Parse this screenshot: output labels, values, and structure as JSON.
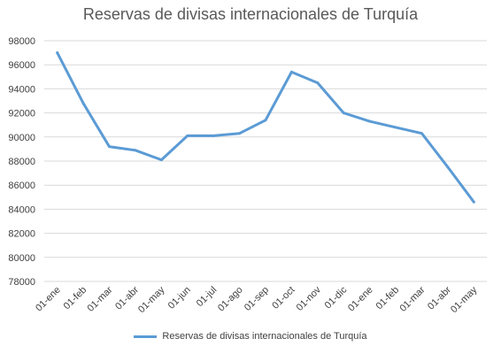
{
  "chart_data": {
    "type": "line",
    "title": "Reservas de divisas  internacionales de Turquía",
    "xlabel": "",
    "ylabel": "",
    "categories": [
      "01-ene",
      "01-feb",
      "01-mar",
      "01-abr",
      "01-may",
      "01-jun",
      "01-jul",
      "01-ago",
      "01-sep",
      "01-oct",
      "01-nov",
      "01-dic",
      "01-ene",
      "01-feb",
      "01-mar",
      "01-abr",
      "01-may"
    ],
    "series": [
      {
        "name": "Reservas de divisas  internacionales de Turquía",
        "values": [
          97000,
          92800,
          89200,
          88900,
          88100,
          90100,
          90100,
          90300,
          91400,
          95400,
          94500,
          92000,
          91300,
          90800,
          90300,
          87500,
          84600
        ],
        "color": "#5B9BD5"
      }
    ],
    "ylim": [
      78000,
      98000
    ],
    "yticks": [
      78000,
      80000,
      82000,
      84000,
      86000,
      88000,
      90000,
      92000,
      94000,
      96000,
      98000
    ],
    "grid": true,
    "legend_position": "bottom"
  }
}
